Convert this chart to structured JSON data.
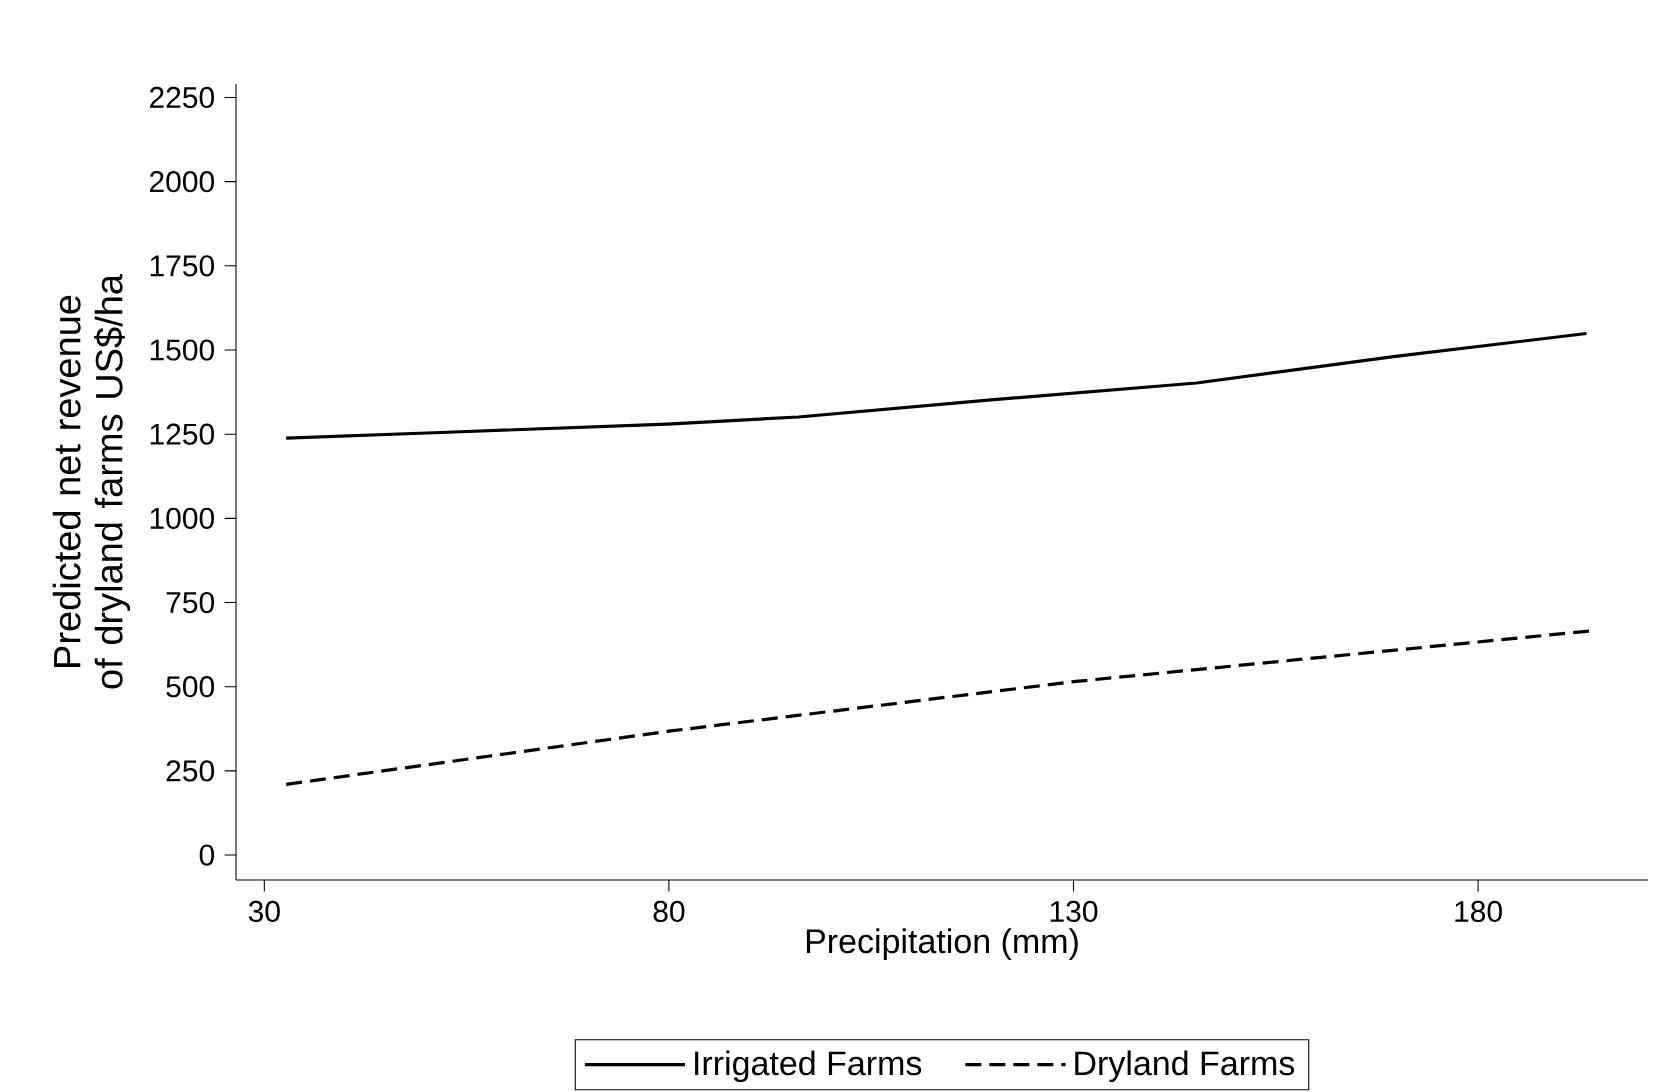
{
  "chart_data": {
    "type": "line",
    "xlabel": "Precipitation (mm)",
    "ylabel": "Predicted net revenue of dryland farms US$/ha",
    "xlim": [
      26.5,
      201
    ],
    "xticks": [
      30,
      80,
      130,
      180
    ],
    "ylim": [
      -74,
      2290
    ],
    "yticks": [
      0,
      250,
      500,
      750,
      1000,
      1250,
      1500,
      1750,
      2000,
      2250
    ],
    "legend": "bottom",
    "marker": "none",
    "series": [
      {
        "name": "Irrigated Farms",
        "color": "#000000",
        "line_style": "solid",
        "x": [
          32.7,
          51.8,
          79.8,
          96,
          119.8,
          145.2,
          169.8,
          193.4
        ],
        "values": [
          1238,
          1255,
          1280,
          1301,
          1352,
          1402,
          1481,
          1549
        ]
      },
      {
        "name": "Dryland Farms",
        "color": "#000000",
        "line_style": "dashed",
        "x": [
          32.7,
          80,
          130,
          194
        ],
        "values": [
          210,
          368,
          515,
          666
        ]
      }
    ]
  }
}
